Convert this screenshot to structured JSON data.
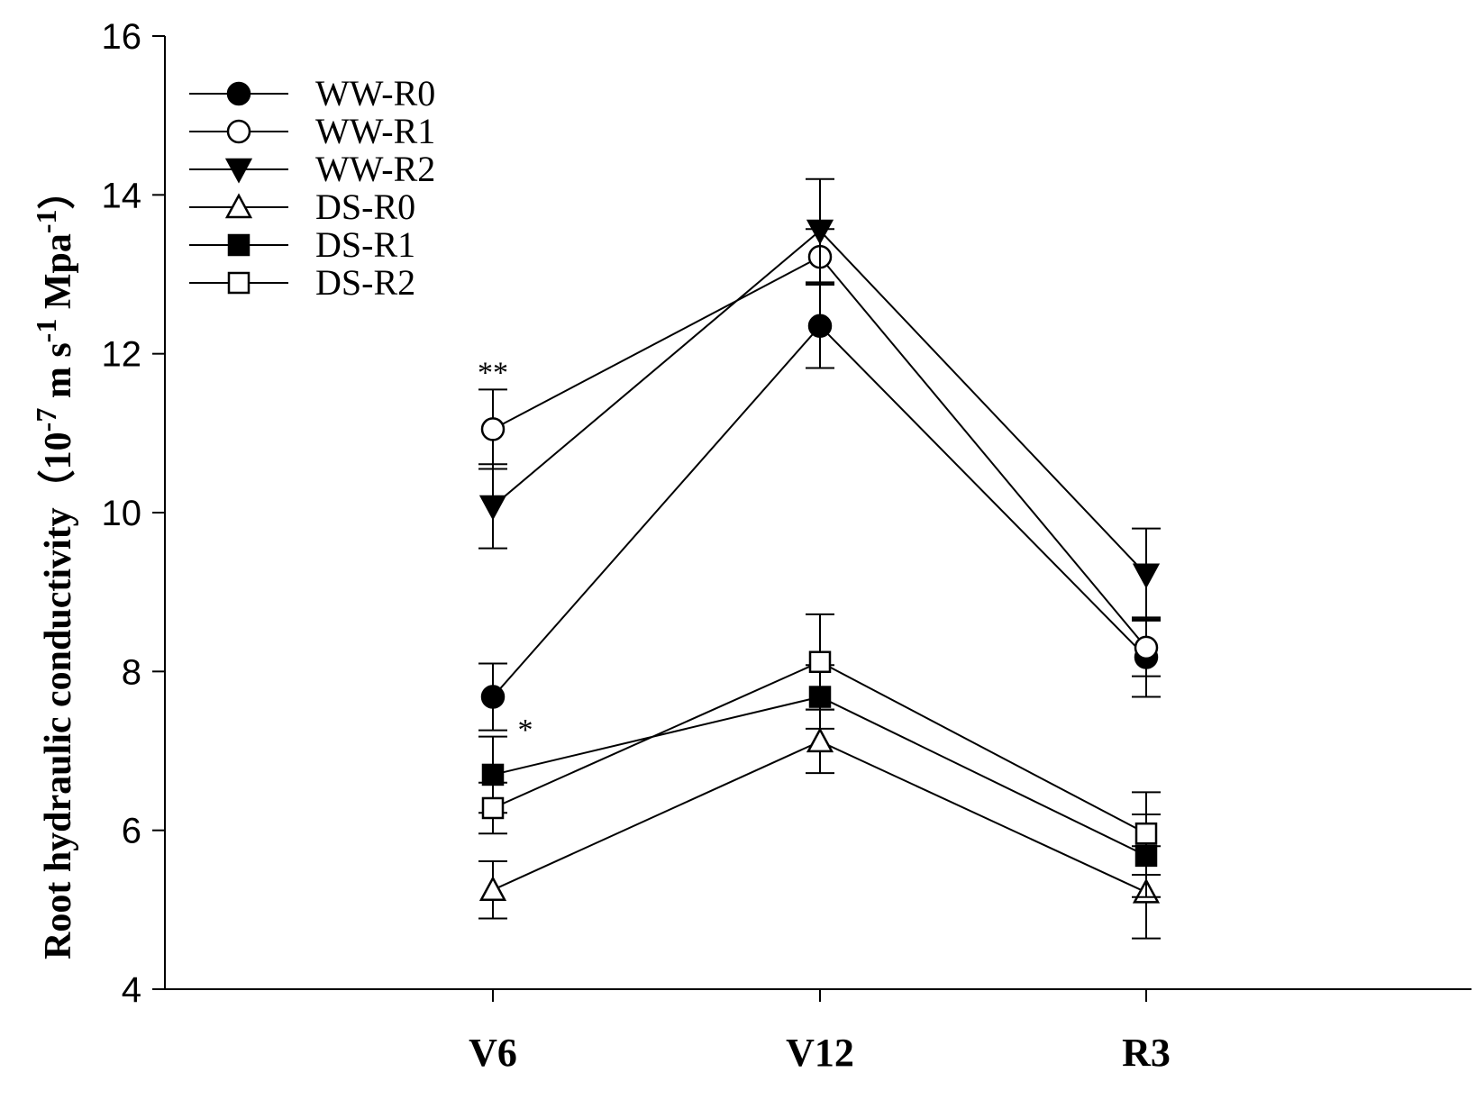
{
  "chart_data": {
    "type": "line",
    "categories": [
      "V6",
      "V12",
      "R3"
    ],
    "ylim": [
      4,
      16
    ],
    "yticks": [
      4,
      6,
      8,
      10,
      12,
      14,
      16
    ],
    "ylabel": {
      "main": "Root hydraulic conductivity（10",
      "exp1": "-7",
      "mid1": " m s",
      "exp2": "-1",
      "mid2": " Mpa",
      "exp3": "-1",
      "end": "）"
    },
    "legend_position": "top-left",
    "grid": false,
    "series": [
      {
        "name": "WW-R0",
        "marker": "circle",
        "filled": true,
        "values": [
          7.68,
          12.35,
          8.18
        ],
        "errors": [
          0.42,
          0.53,
          0.5
        ]
      },
      {
        "name": "WW-R1",
        "marker": "circle",
        "filled": false,
        "values": [
          11.05,
          13.22,
          8.3
        ],
        "errors": [
          0.5,
          0.35,
          0.36
        ]
      },
      {
        "name": "WW-R2",
        "marker": "triangle-down",
        "filled": true,
        "values": [
          10.08,
          13.55,
          9.22
        ],
        "errors": [
          0.53,
          0.65,
          0.58
        ]
      },
      {
        "name": "DS-R0",
        "marker": "triangle-up",
        "filled": false,
        "values": [
          5.25,
          7.12,
          5.22
        ],
        "errors": [
          0.36,
          0.4,
          0.58
        ]
      },
      {
        "name": "DS-R1",
        "marker": "square",
        "filled": true,
        "values": [
          6.7,
          7.68,
          5.68
        ],
        "errors": [
          0.48,
          0.4,
          0.52
        ]
      },
      {
        "name": "DS-R2",
        "marker": "square",
        "filled": false,
        "values": [
          6.28,
          8.12,
          5.96
        ],
        "errors": [
          0.32,
          0.6,
          0.52
        ]
      }
    ],
    "annotations": [
      {
        "text": "**",
        "category": "V6",
        "y": 11.8
      },
      {
        "text": "*",
        "category": "V6",
        "y": 7.3
      }
    ]
  }
}
